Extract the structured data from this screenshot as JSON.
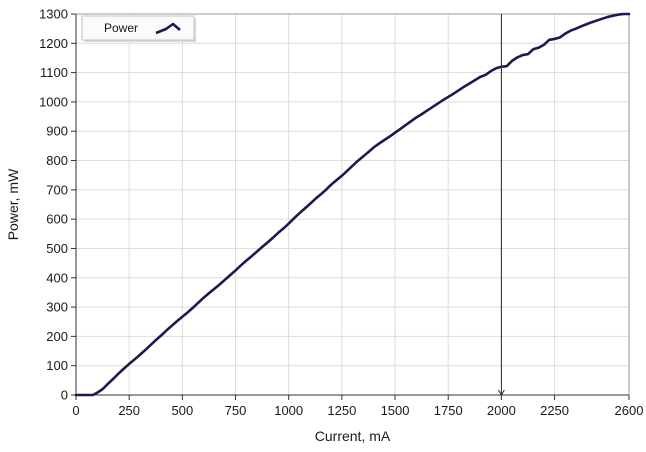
{
  "chart_data": {
    "type": "line",
    "title": "",
    "xlabel": "Current, mA",
    "ylabel": "Power, mW",
    "xlim": [
      0,
      2600
    ],
    "ylim": [
      0,
      1300
    ],
    "x_ticks": [
      0,
      250,
      500,
      750,
      1000,
      1250,
      1500,
      1750,
      2000,
      2250,
      2600
    ],
    "y_ticks": [
      0,
      100,
      200,
      300,
      400,
      500,
      600,
      700,
      800,
      900,
      1000,
      1100,
      1200,
      1300
    ],
    "grid": true,
    "legend": {
      "position": "top-left",
      "entries": [
        "Power"
      ]
    },
    "cursor": {
      "x": 2000
    },
    "series": [
      {
        "name": "Power",
        "color": "#1a1a4e",
        "x": [
          0,
          40,
          80,
          100,
          125,
          150,
          175,
          200,
          225,
          250,
          275,
          300,
          325,
          350,
          375,
          400,
          425,
          450,
          475,
          500,
          525,
          550,
          575,
          600,
          625,
          650,
          675,
          700,
          725,
          750,
          775,
          800,
          825,
          850,
          875,
          900,
          925,
          950,
          975,
          1000,
          1025,
          1050,
          1075,
          1100,
          1125,
          1150,
          1175,
          1200,
          1225,
          1250,
          1275,
          1300,
          1325,
          1350,
          1375,
          1400,
          1425,
          1450,
          1475,
          1500,
          1525,
          1550,
          1575,
          1600,
          1625,
          1650,
          1675,
          1700,
          1725,
          1750,
          1775,
          1800,
          1825,
          1850,
          1875,
          1900,
          1925,
          1950,
          1975,
          2000,
          2025,
          2050,
          2075,
          2100,
          2125,
          2150,
          2175,
          2200,
          2225,
          2250,
          2275,
          2300,
          2325,
          2350,
          2375,
          2400,
          2425,
          2450,
          2475,
          2500,
          2525,
          2550,
          2575,
          2600
        ],
        "y": [
          0,
          0,
          0,
          8,
          20,
          38,
          55,
          73,
          90,
          106,
          121,
          137,
          153,
          170,
          187,
          203,
          220,
          236,
          252,
          267,
          282,
          298,
          315,
          332,
          347,
          362,
          377,
          393,
          409,
          425,
          442,
          458,
          473,
          489,
          505,
          520,
          536,
          553,
          568,
          585,
          603,
          620,
          636,
          652,
          669,
          684,
          700,
          718,
          733,
          748,
          765,
          782,
          799,
          814,
          829,
          845,
          858,
          870,
          882,
          895,
          908,
          921,
          934,
          947,
          958,
          970,
          982,
          994,
          1006,
          1017,
          1028,
          1040,
          1052,
          1063,
          1074,
          1085,
          1092,
          1105,
          1115,
          1120,
          1122,
          1140,
          1152,
          1160,
          1163,
          1180,
          1185,
          1195,
          1212,
          1215,
          1220,
          1233,
          1243,
          1250,
          1258,
          1265,
          1272,
          1278,
          1284,
          1290,
          1294,
          1298,
          1300,
          1300
        ]
      }
    ]
  }
}
